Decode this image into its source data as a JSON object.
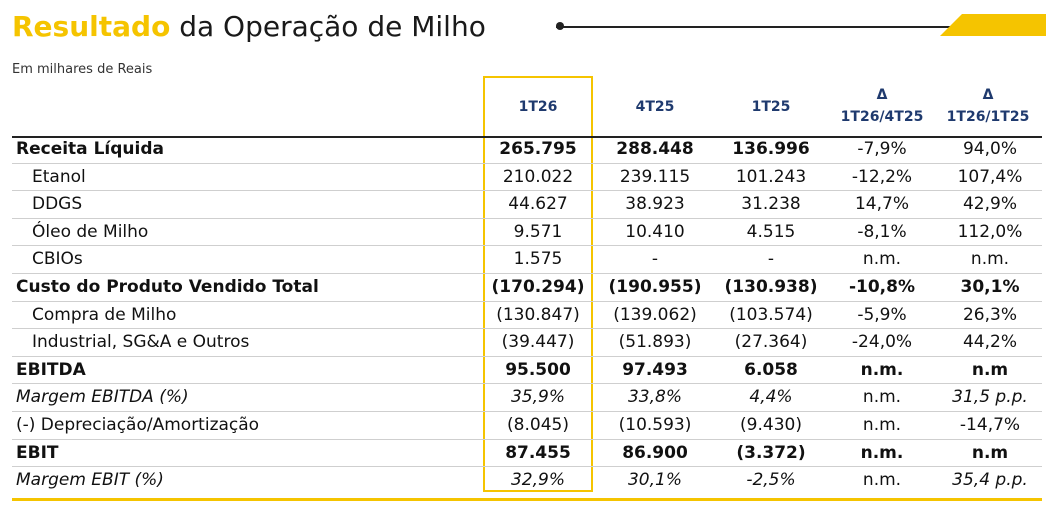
{
  "title": {
    "highlight": "Resultado",
    "rest": " da Operação de Milho"
  },
  "subtitle": "Em milhares de Reais",
  "columns": {
    "c1": {
      "line1": "1T26"
    },
    "c2": {
      "line1": "4T25"
    },
    "c3": {
      "line1": "1T25"
    },
    "c4": {
      "line1": "Δ",
      "line2": "1T26/4T25"
    },
    "c5": {
      "line1": "Δ",
      "line2": "1T26/1T25"
    }
  },
  "rows": [
    {
      "label": "Receita Líquida",
      "v": [
        "265.795",
        "288.448",
        "136.996",
        "-7,9%",
        "94,0%"
      ]
    },
    {
      "label": "Etanol",
      "v": [
        "210.022",
        "239.115",
        "101.243",
        "-12,2%",
        "107,4%"
      ]
    },
    {
      "label": "DDGS",
      "v": [
        "44.627",
        "38.923",
        "31.238",
        "14,7%",
        "42,9%"
      ]
    },
    {
      "label": "Óleo de Milho",
      "v": [
        "9.571",
        "10.410",
        "4.515",
        "-8,1%",
        "112,0%"
      ]
    },
    {
      "label": "CBIOs",
      "v": [
        "1.575",
        "-",
        "-",
        "n.m.",
        "n.m."
      ]
    },
    {
      "label": "Custo do Produto Vendido Total",
      "v": [
        "(170.294)",
        "(190.955)",
        "(130.938)",
        "-10,8%",
        "30,1%"
      ]
    },
    {
      "label": "Compra de Milho",
      "v": [
        "(130.847)",
        "(139.062)",
        "(103.574)",
        "-5,9%",
        "26,3%"
      ]
    },
    {
      "label": "Industrial, SG&A e Outros",
      "v": [
        "(39.447)",
        "(51.893)",
        "(27.364)",
        "-24,0%",
        "44,2%"
      ]
    },
    {
      "label": "EBITDA",
      "v": [
        "95.500",
        "97.493",
        "6.058",
        "n.m.",
        "n.m"
      ]
    },
    {
      "label": "Margem EBITDA (%)",
      "v": [
        "35,9%",
        "33,8%",
        "4,4%",
        "n.m.",
        "31,5 p.p."
      ]
    },
    {
      "label": "(-) Depreciação/Amortização",
      "v": [
        "(8.045)",
        "(10.593)",
        "(9.430)",
        "n.m.",
        "-14,7%"
      ]
    },
    {
      "label": "EBIT",
      "v": [
        "87.455",
        "86.900",
        "(3.372)",
        "n.m.",
        "n.m"
      ]
    },
    {
      "label": "Margem EBIT (%)",
      "v": [
        "32,9%",
        "30,1%",
        "-2,5%",
        "n.m.",
        "35,4 p.p."
      ]
    }
  ],
  "colors": {
    "accent": "#f5c400",
    "header_text": "#1f3a6e"
  }
}
